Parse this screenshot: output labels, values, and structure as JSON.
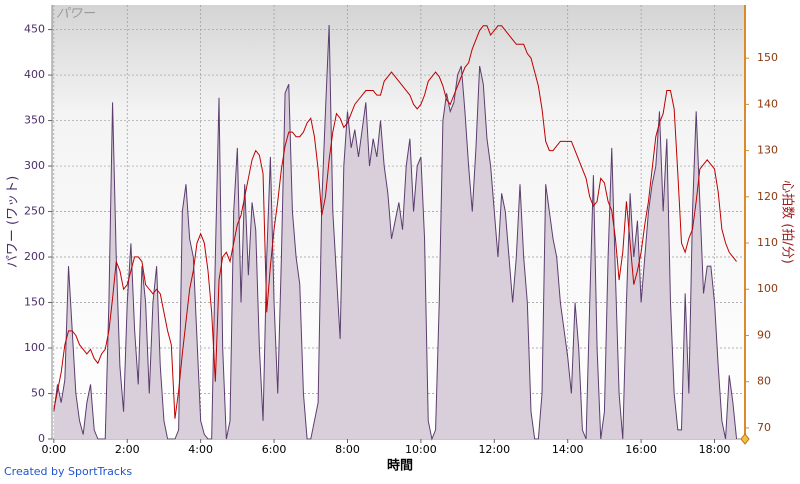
{
  "chart_data": {
    "type": "line",
    "title": "パワー",
    "x_label": "時間",
    "y_label": "パワー (ワット)",
    "y2_label": "心拍数 (拍/分)",
    "footer": "Created by SportTracks",
    "grid": true,
    "xlim": [
      -0.05,
      18.83
    ],
    "xticks": [
      {
        "value": 0,
        "label": "0:00"
      },
      {
        "value": 2,
        "label": "2:00"
      },
      {
        "value": 4,
        "label": "4:00"
      },
      {
        "value": 6,
        "label": "6:00"
      },
      {
        "value": 8,
        "label": "8:00"
      },
      {
        "value": 10,
        "label": "10:00"
      },
      {
        "value": 12,
        "label": "12:00"
      },
      {
        "value": 14,
        "label": "14:00"
      },
      {
        "value": 16,
        "label": "16:00"
      },
      {
        "value": 18,
        "label": "18:00"
      }
    ],
    "ylim": [
      0,
      477
    ],
    "yticks": [
      0,
      50,
      100,
      150,
      200,
      250,
      300,
      350,
      400,
      450
    ],
    "y2lim": [
      67.6,
      161.5
    ],
    "y2ticks": [
      70,
      80,
      90,
      100,
      110,
      120,
      130,
      140,
      150
    ],
    "x": [
      0,
      0.1,
      0.2,
      0.3,
      0.4,
      0.5,
      0.6,
      0.7,
      0.8,
      0.9,
      1,
      1.1,
      1.2,
      1.3,
      1.4,
      1.5,
      1.6,
      1.7,
      1.8,
      1.9,
      2,
      2.1,
      2.2,
      2.3,
      2.4,
      2.5,
      2.6,
      2.7,
      2.8,
      2.9,
      3,
      3.1,
      3.2,
      3.3,
      3.4,
      3.5,
      3.6,
      3.7,
      3.8,
      3.9,
      4,
      4.1,
      4.2,
      4.3,
      4.4,
      4.5,
      4.6,
      4.7,
      4.8,
      4.9,
      5,
      5.1,
      5.2,
      5.3,
      5.4,
      5.5,
      5.6,
      5.7,
      5.8,
      5.9,
      6,
      6.1,
      6.2,
      6.3,
      6.4,
      6.5,
      6.6,
      6.7,
      6.8,
      6.9,
      7,
      7.1,
      7.2,
      7.3,
      7.4,
      7.5,
      7.6,
      7.7,
      7.8,
      7.9,
      8,
      8.1,
      8.2,
      8.3,
      8.4,
      8.5,
      8.6,
      8.7,
      8.8,
      8.9,
      9,
      9.1,
      9.2,
      9.3,
      9.4,
      9.5,
      9.6,
      9.7,
      9.8,
      9.9,
      10,
      10.1,
      10.2,
      10.3,
      10.4,
      10.5,
      10.6,
      10.7,
      10.8,
      10.9,
      11,
      11.1,
      11.2,
      11.3,
      11.4,
      11.5,
      11.6,
      11.7,
      11.8,
      11.9,
      12,
      12.1,
      12.2,
      12.3,
      12.4,
      12.5,
      12.6,
      12.7,
      12.8,
      12.9,
      13,
      13.1,
      13.2,
      13.3,
      13.4,
      13.5,
      13.6,
      13.7,
      13.8,
      13.9,
      14,
      14.1,
      14.2,
      14.3,
      14.4,
      14.5,
      14.6,
      14.7,
      14.8,
      14.9,
      15,
      15.1,
      15.2,
      15.3,
      15.4,
      15.5,
      15.6,
      15.7,
      15.8,
      15.9,
      16,
      16.1,
      16.2,
      16.3,
      16.4,
      16.5,
      16.6,
      16.7,
      16.8,
      16.9,
      17,
      17.1,
      17.2,
      17.3,
      17.4,
      17.5,
      17.6,
      17.7,
      17.8,
      17.9,
      18,
      18.1,
      18.2,
      18.3,
      18.4,
      18.5,
      18.6
    ],
    "series": [
      {
        "name": "パワー",
        "type": "area",
        "color": "#5b3d6e",
        "fill": "#d9cfda",
        "values": [
          30,
          60,
          40,
          65,
          190,
          120,
          50,
          20,
          5,
          40,
          60,
          10,
          0,
          0,
          0,
          150,
          370,
          200,
          80,
          30,
          150,
          215,
          120,
          60,
          190,
          150,
          50,
          150,
          190,
          80,
          20,
          0,
          0,
          0,
          10,
          250,
          280,
          220,
          200,
          110,
          20,
          5,
          0,
          0,
          200,
          375,
          100,
          0,
          20,
          250,
          320,
          150,
          280,
          180,
          260,
          230,
          100,
          20,
          200,
          310,
          150,
          50,
          200,
          380,
          390,
          250,
          200,
          170,
          50,
          0,
          0,
          20,
          40,
          260,
          360,
          455,
          250,
          180,
          110,
          300,
          360,
          320,
          340,
          310,
          340,
          370,
          300,
          330,
          310,
          350,
          300,
          270,
          220,
          240,
          260,
          230,
          300,
          330,
          250,
          300,
          310,
          220,
          20,
          0,
          10,
          150,
          350,
          380,
          360,
          370,
          400,
          410,
          360,
          300,
          250,
          320,
          410,
          390,
          330,
          300,
          250,
          200,
          270,
          250,
          200,
          150,
          200,
          280,
          200,
          150,
          30,
          0,
          0,
          50,
          280,
          250,
          220,
          200,
          150,
          120,
          90,
          50,
          150,
          100,
          10,
          0,
          150,
          290,
          100,
          0,
          30,
          200,
          320,
          180,
          50,
          0,
          150,
          270,
          200,
          240,
          150,
          200,
          250,
          280,
          300,
          360,
          250,
          330,
          150,
          50,
          10,
          10,
          160,
          50,
          250,
          360,
          260,
          160,
          190,
          190,
          150,
          80,
          20,
          0,
          70,
          40,
          0
        ]
      },
      {
        "name": "心拍数",
        "type": "line",
        "axis": "y2",
        "color": "#c00000",
        "values": [
          74,
          78,
          82,
          88,
          91,
          91,
          90,
          88,
          87,
          86,
          87,
          85,
          84,
          86,
          87,
          91,
          98,
          106,
          104,
          100,
          101,
          104,
          107,
          107,
          106,
          101,
          100,
          99,
          100,
          99,
          95,
          91,
          88,
          72,
          78,
          86,
          93,
          100,
          104,
          110,
          112,
          110,
          104,
          95,
          80,
          102,
          107,
          108,
          106,
          110,
          114,
          116,
          120,
          124,
          128,
          130,
          129,
          125,
          95,
          105,
          113,
          119,
          126,
          131,
          134,
          134,
          133,
          133,
          134,
          136,
          137,
          133,
          126,
          116,
          120,
          128,
          134,
          138,
          137,
          135,
          136,
          138,
          140,
          141,
          142,
          143,
          143,
          143,
          142,
          142,
          145,
          146,
          147,
          146,
          145,
          144,
          143,
          142,
          140,
          139,
          140,
          142,
          145,
          146,
          147,
          146,
          144,
          141,
          140,
          142,
          144,
          146,
          148,
          149,
          152,
          154,
          156,
          157,
          157,
          155,
          156,
          157,
          157,
          156,
          155,
          154,
          153,
          153,
          153,
          151,
          150,
          147,
          144,
          139,
          132,
          130,
          130,
          131,
          132,
          132,
          132,
          132,
          130,
          128,
          126,
          124,
          120,
          118,
          119,
          124,
          123,
          119,
          117,
          111,
          102,
          108,
          119,
          110,
          101,
          104,
          108,
          114,
          119,
          126,
          133,
          136,
          138,
          143,
          143,
          139,
          125,
          110,
          108,
          111,
          113,
          119,
          126,
          127,
          128,
          127,
          126,
          121,
          113,
          110,
          108,
          107,
          106
        ]
      }
    ]
  }
}
